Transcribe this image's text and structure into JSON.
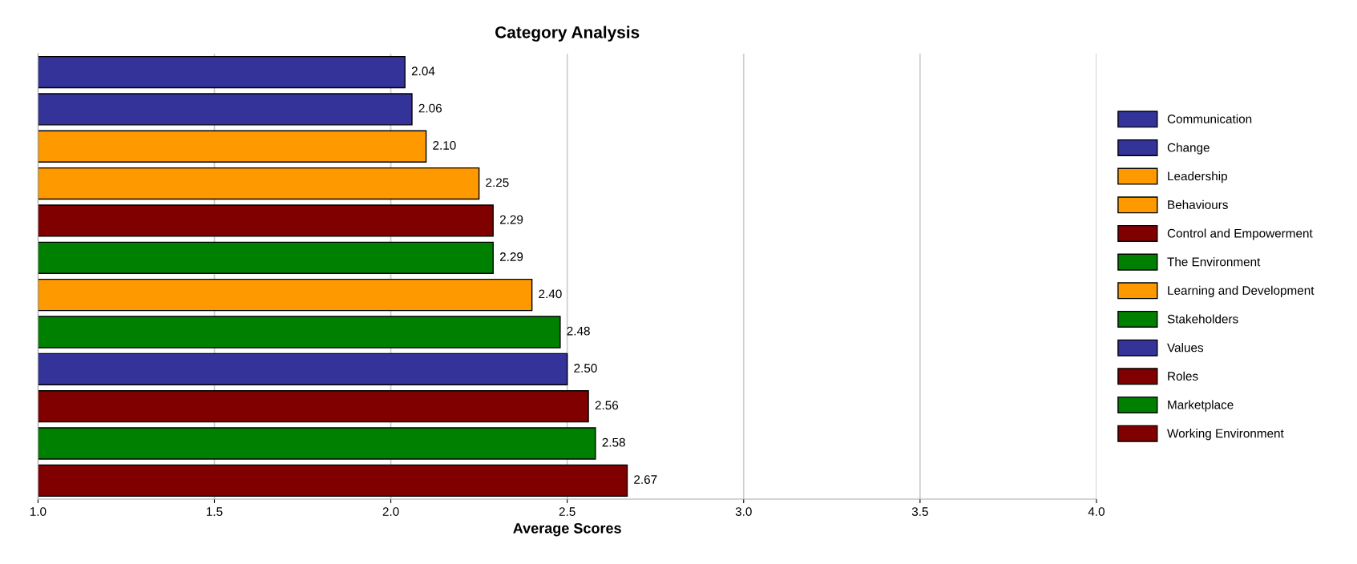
{
  "chart_data": {
    "type": "bar",
    "orientation": "horizontal",
    "title": "Category Analysis",
    "xlabel": "Average Scores",
    "categories": [
      null,
      null,
      null,
      null,
      null,
      null,
      null,
      null,
      null,
      null,
      null,
      null
    ],
    "series": [
      {
        "name": "Communication",
        "color": "#333399",
        "values": [
          2.04,
          null,
          null,
          null,
          null,
          null,
          null,
          null,
          null,
          null,
          null,
          null
        ],
        "value_labels": [
          "2.04",
          null,
          null,
          null,
          null,
          null,
          null,
          null,
          null,
          null,
          null,
          null
        ]
      },
      {
        "name": "Change",
        "color": "#333399",
        "values": [
          null,
          2.06,
          null,
          null,
          null,
          null,
          null,
          null,
          null,
          null,
          null,
          null
        ],
        "value_labels": [
          null,
          "2.06",
          null,
          null,
          null,
          null,
          null,
          null,
          null,
          null,
          null,
          null
        ]
      },
      {
        "name": "Leadership",
        "color": "#ff9900",
        "values": [
          null,
          null,
          2.1,
          null,
          null,
          null,
          null,
          null,
          null,
          null,
          null,
          null
        ],
        "value_labels": [
          null,
          null,
          "2.10",
          null,
          null,
          null,
          null,
          null,
          null,
          null,
          null,
          null
        ]
      },
      {
        "name": "Behaviours",
        "color": "#ff9900",
        "values": [
          null,
          null,
          null,
          2.25,
          null,
          null,
          null,
          null,
          null,
          null,
          null,
          null
        ],
        "value_labels": [
          null,
          null,
          null,
          "2.25",
          null,
          null,
          null,
          null,
          null,
          null,
          null,
          null
        ]
      },
      {
        "name": "Control and Empowerment",
        "color": "#800000",
        "values": [
          null,
          null,
          null,
          null,
          2.29,
          null,
          null,
          null,
          null,
          null,
          null,
          null
        ],
        "value_labels": [
          null,
          null,
          null,
          null,
          "2.29",
          null,
          null,
          null,
          null,
          null,
          null,
          null
        ]
      },
      {
        "name": "The Environment",
        "color": "#008000",
        "values": [
          null,
          null,
          null,
          null,
          null,
          2.29,
          null,
          null,
          null,
          null,
          null,
          null
        ],
        "value_labels": [
          null,
          null,
          null,
          null,
          null,
          "2.29",
          null,
          null,
          null,
          null,
          null,
          null
        ]
      },
      {
        "name": "Learning and Development",
        "color": "#ff9900",
        "values": [
          null,
          null,
          null,
          null,
          null,
          null,
          2.4,
          null,
          null,
          null,
          null,
          null
        ],
        "value_labels": [
          null,
          null,
          null,
          null,
          null,
          null,
          "2.40",
          null,
          null,
          null,
          null,
          null
        ]
      },
      {
        "name": "Stakeholders",
        "color": "#008000",
        "values": [
          null,
          null,
          null,
          null,
          null,
          null,
          null,
          2.48,
          null,
          null,
          null,
          null
        ],
        "value_labels": [
          null,
          null,
          null,
          null,
          null,
          null,
          null,
          "2.48",
          null,
          null,
          null,
          null
        ]
      },
      {
        "name": "Values",
        "color": "#333399",
        "values": [
          null,
          null,
          null,
          null,
          null,
          null,
          null,
          null,
          2.5,
          null,
          null,
          null
        ],
        "value_labels": [
          null,
          null,
          null,
          null,
          null,
          null,
          null,
          null,
          "2.50",
          null,
          null,
          null
        ]
      },
      {
        "name": "Roles",
        "color": "#800000",
        "values": [
          null,
          null,
          null,
          null,
          null,
          null,
          null,
          null,
          null,
          2.56,
          null,
          null
        ],
        "value_labels": [
          null,
          null,
          null,
          null,
          null,
          null,
          null,
          null,
          null,
          "2.56",
          null,
          null
        ]
      },
      {
        "name": "Marketplace",
        "color": "#008000",
        "values": [
          null,
          null,
          null,
          null,
          null,
          null,
          null,
          null,
          null,
          null,
          2.58,
          null
        ],
        "value_labels": [
          null,
          null,
          null,
          null,
          null,
          null,
          null,
          null,
          null,
          null,
          "2.58",
          null
        ]
      },
      {
        "name": "Working Environment",
        "color": "#800000",
        "values": [
          null,
          null,
          null,
          null,
          null,
          null,
          null,
          null,
          null,
          null,
          null,
          2.67
        ],
        "value_labels": [
          null,
          null,
          null,
          null,
          null,
          null,
          null,
          null,
          null,
          null,
          null,
          "2.67"
        ]
      }
    ],
    "xlim": [
      1.0,
      4.0
    ],
    "xticks": [
      {
        "value": 1.0,
        "label": "1.0"
      },
      {
        "value": 1.5,
        "label": "1.5"
      },
      {
        "value": 2.0,
        "label": "2.0"
      },
      {
        "value": 2.5,
        "label": "2.5"
      },
      {
        "value": 3.0,
        "label": "3.0"
      },
      {
        "value": 3.5,
        "label": "3.5"
      },
      {
        "value": 4.0,
        "label": "4.0"
      }
    ],
    "grid": "x",
    "legend": "right"
  }
}
